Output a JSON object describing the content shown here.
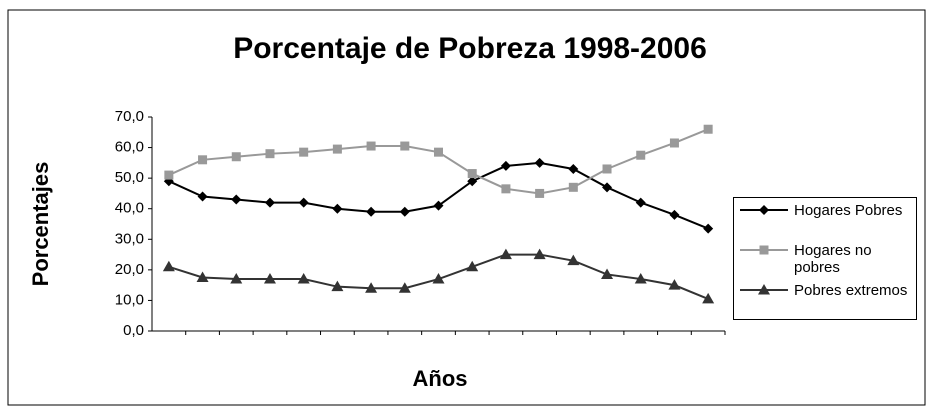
{
  "chart_data": {
    "type": "line",
    "title": "Porcentaje de Pobreza 1998-2006",
    "x_label": "Años",
    "y_label": "Porcentajes",
    "categories": [
      null,
      null,
      null,
      null,
      null,
      null,
      null,
      null,
      null,
      null,
      null,
      null,
      null,
      null,
      null,
      null,
      null
    ],
    "series": [
      {
        "name": "Hogares Pobres",
        "color": "#000000",
        "marker": "diamond",
        "values": [
          49,
          44,
          43,
          42,
          42,
          40,
          39,
          39,
          41,
          49,
          54,
          55,
          53,
          47,
          42,
          38,
          33.5
        ]
      },
      {
        "name": "Hogares no pobres",
        "color": "#999999",
        "marker": "square",
        "values": [
          51,
          56,
          57,
          58,
          58.5,
          59.5,
          60.5,
          60.5,
          58.5,
          51.5,
          46.5,
          45,
          47,
          53,
          57.5,
          61.5,
          66
        ]
      },
      {
        "name": "Pobres extremos",
        "color": "#333333",
        "marker": "triangle",
        "values": [
          21,
          17.5,
          17,
          17,
          17,
          14.5,
          14,
          14,
          17,
          21,
          25,
          25,
          23,
          18.5,
          17,
          15,
          10.5
        ]
      }
    ],
    "ylim": [
      0,
      70
    ],
    "yticks": [
      {
        "value": 0,
        "label": "0,0"
      },
      {
        "value": 10,
        "label": "10,0"
      },
      {
        "value": 20,
        "label": "20,0"
      },
      {
        "value": 30,
        "label": "30,0"
      },
      {
        "value": 40,
        "label": "40,0"
      },
      {
        "value": 50,
        "label": "50,0"
      },
      {
        "value": 60,
        "label": "60,0"
      },
      {
        "value": 70,
        "label": "70,0"
      }
    ],
    "grid": false,
    "legend": "right"
  }
}
